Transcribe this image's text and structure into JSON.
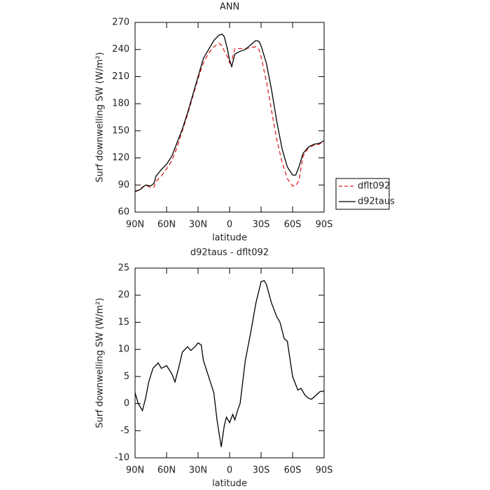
{
  "chart_data": [
    {
      "type": "line",
      "title": "ANN",
      "xlabel": "latitude",
      "ylabel": "Surf downwelling SW (W/m²)",
      "x": [
        90,
        85,
        80,
        75,
        72,
        70,
        65,
        60,
        55,
        50,
        45,
        40,
        35,
        30,
        25,
        20,
        15,
        10,
        7,
        5,
        2,
        0,
        -2,
        -5,
        -10,
        -15,
        -20,
        -25,
        -28,
        -30,
        -35,
        -40,
        -45,
        -50,
        -55,
        -60,
        -63,
        -66,
        -70,
        -75,
        -80,
        -85,
        -90
      ],
      "series": [
        {
          "name": "dflt092",
          "color": "#e02020",
          "linestyle": "dashed",
          "values": [
            82,
            86,
            90,
            87,
            88,
            94,
            100,
            108,
            117,
            132,
            150,
            168,
            188,
            208,
            225,
            236,
            243,
            247,
            244,
            238,
            232,
            225,
            228,
            241,
            241,
            241,
            242,
            243,
            240,
            232,
            205,
            172,
            140,
            115,
            97,
            89,
            89,
            95,
            122,
            131,
            134,
            135,
            138
          ]
        },
        {
          "name": "d92taus",
          "color": "#000000",
          "linestyle": "solid",
          "values": [
            83,
            85,
            90,
            89,
            92,
            100,
            107,
            113,
            122,
            137,
            152,
            170,
            190,
            210,
            230,
            240,
            250,
            256,
            257,
            254,
            240,
            228,
            221,
            235,
            238,
            240,
            245,
            250,
            249,
            244,
            225,
            195,
            160,
            130,
            110,
            101,
            101,
            110,
            125,
            132,
            135,
            136,
            139
          ]
        }
      ],
      "xlim": [
        90,
        -90
      ],
      "xticks": [
        {
          "value": 90,
          "label": "90N"
        },
        {
          "value": 60,
          "label": "60N"
        },
        {
          "value": 30,
          "label": "30N"
        },
        0,
        {
          "value": -30,
          "label": "30S"
        },
        {
          "value": -60,
          "label": "60S"
        },
        {
          "value": -90,
          "label": "90S"
        }
      ],
      "ylim": [
        60,
        270
      ],
      "yticks": [
        60,
        90,
        120,
        150,
        180,
        210,
        240,
        270
      ],
      "legend": "right"
    },
    {
      "type": "line",
      "title": "d92taus - dflt092",
      "xlabel": "latitude",
      "ylabel": "Surf downwelling SW (W/m²)",
      "x": [
        90,
        87,
        83,
        80,
        77,
        73,
        68,
        65,
        60,
        55,
        52,
        48,
        45,
        40,
        37,
        33,
        30,
        27,
        25,
        20,
        15,
        12,
        8,
        5,
        3,
        0,
        -3,
        -5,
        -8,
        -10,
        -15,
        -20,
        -25,
        -30,
        -33,
        -35,
        -40,
        -45,
        -48,
        -52,
        -55,
        -60,
        -62,
        -65,
        -68,
        -72,
        -75,
        -78,
        -82,
        -86,
        -90
      ],
      "series": [
        {
          "name": "d92taus - dflt092",
          "color": "#000000",
          "linestyle": "solid",
          "values": [
            2,
            0,
            -1.3,
            1,
            4,
            6.5,
            7.5,
            6.5,
            7,
            5.5,
            4,
            7,
            9.5,
            10.5,
            9.8,
            10.5,
            11.2,
            10.8,
            8,
            5,
            2,
            -3,
            -8,
            -4,
            -2.5,
            -3.5,
            -2,
            -3,
            -1,
            0,
            8,
            13,
            18.5,
            22.5,
            22.7,
            22,
            18.5,
            16,
            15,
            12,
            11.5,
            5,
            4,
            2.5,
            2.8,
            1.5,
            1,
            0.8,
            1.5,
            2.2,
            2.3
          ]
        }
      ],
      "xlim": [
        90,
        -90
      ],
      "xticks": [
        {
          "value": 90,
          "label": "90N"
        },
        {
          "value": 60,
          "label": "60N"
        },
        {
          "value": 30,
          "label": "30N"
        },
        0,
        {
          "value": -30,
          "label": "30S"
        },
        {
          "value": -60,
          "label": "60S"
        },
        {
          "value": -90,
          "label": "90S"
        }
      ],
      "ylim": [
        -10,
        25
      ],
      "yticks": [
        -10,
        -5,
        0,
        5,
        10,
        15,
        20,
        25
      ]
    }
  ]
}
